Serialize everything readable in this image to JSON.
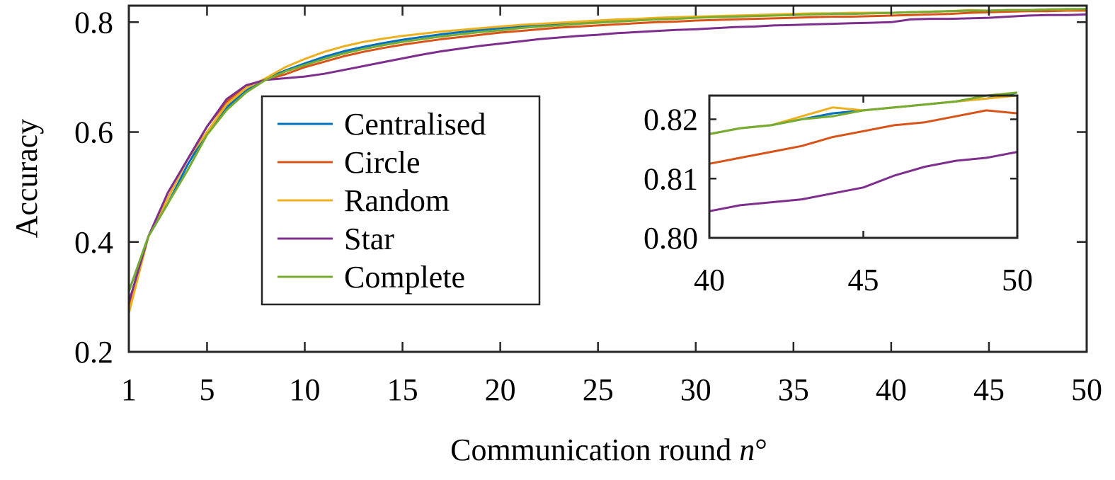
{
  "chart_data": [
    {
      "type": "line",
      "xlabel_main": "Communication round ",
      "xlabel_italic": "n",
      "xlabel_suffix": "°",
      "ylabel": "Accuracy",
      "xlim": [
        1,
        50
      ],
      "ylim": [
        0.2,
        0.83
      ],
      "xticks": [
        1,
        5,
        10,
        15,
        20,
        25,
        30,
        35,
        40,
        45,
        50
      ],
      "yticks": [
        0.2,
        0.4,
        0.6,
        0.8
      ],
      "ytick_labels": [
        "0.2",
        "0.4",
        "0.6",
        "0.8"
      ],
      "grid": false,
      "legend_position": "center-left",
      "x": [
        1,
        2,
        3,
        4,
        5,
        6,
        7,
        8,
        9,
        10,
        11,
        12,
        13,
        14,
        15,
        16,
        17,
        18,
        19,
        20,
        21,
        22,
        23,
        24,
        25,
        26,
        27,
        28,
        29,
        30,
        31,
        32,
        33,
        34,
        35,
        36,
        37,
        38,
        39,
        40,
        41,
        42,
        43,
        44,
        45,
        46,
        47,
        48,
        49,
        50
      ],
      "series": [
        {
          "name": "Centralised",
          "color": "#0072BD",
          "values": [
            0.31,
            0.41,
            0.47,
            0.54,
            0.6,
            0.645,
            0.675,
            0.697,
            0.712,
            0.725,
            0.737,
            0.747,
            0.755,
            0.762,
            0.768,
            0.773,
            0.778,
            0.782,
            0.786,
            0.789,
            0.792,
            0.795,
            0.797,
            0.799,
            0.801,
            0.803,
            0.805,
            0.806,
            0.808,
            0.809,
            0.81,
            0.811,
            0.812,
            0.813,
            0.814,
            0.815,
            0.816,
            0.816,
            0.817,
            0.817,
            0.818,
            0.819,
            0.82,
            0.821,
            0.821,
            0.822,
            0.822,
            0.823,
            0.823,
            0.824
          ]
        },
        {
          "name": "Circle",
          "color": "#D95319",
          "values": [
            0.28,
            0.41,
            0.48,
            0.55,
            0.61,
            0.655,
            0.685,
            0.695,
            0.705,
            0.718,
            0.728,
            0.738,
            0.746,
            0.753,
            0.759,
            0.764,
            0.769,
            0.773,
            0.777,
            0.781,
            0.784,
            0.787,
            0.79,
            0.792,
            0.794,
            0.796,
            0.798,
            0.8,
            0.801,
            0.803,
            0.804,
            0.805,
            0.806,
            0.807,
            0.808,
            0.809,
            0.81,
            0.81,
            0.811,
            0.812,
            0.813,
            0.814,
            0.815,
            0.817,
            0.818,
            0.819,
            0.82,
            0.82,
            0.821,
            0.821
          ]
        },
        {
          "name": "Random",
          "color": "#EDB120",
          "values": [
            0.27,
            0.41,
            0.48,
            0.55,
            0.6,
            0.65,
            0.68,
            0.698,
            0.718,
            0.733,
            0.746,
            0.756,
            0.764,
            0.77,
            0.775,
            0.779,
            0.783,
            0.786,
            0.789,
            0.792,
            0.795,
            0.797,
            0.799,
            0.801,
            0.803,
            0.805,
            0.806,
            0.808,
            0.809,
            0.81,
            0.811,
            0.812,
            0.813,
            0.814,
            0.815,
            0.816,
            0.816,
            0.817,
            0.817,
            0.817,
            0.818,
            0.819,
            0.82,
            0.822,
            0.821,
            0.822,
            0.822,
            0.823,
            0.823,
            0.824
          ]
        },
        {
          "name": "Star",
          "color": "#7E2F8E",
          "values": [
            0.29,
            0.41,
            0.49,
            0.55,
            0.61,
            0.66,
            0.685,
            0.695,
            0.698,
            0.701,
            0.706,
            0.713,
            0.72,
            0.727,
            0.734,
            0.741,
            0.747,
            0.752,
            0.757,
            0.761,
            0.765,
            0.769,
            0.772,
            0.775,
            0.777,
            0.78,
            0.782,
            0.784,
            0.786,
            0.787,
            0.789,
            0.791,
            0.792,
            0.794,
            0.795,
            0.796,
            0.797,
            0.798,
            0.799,
            0.8,
            0.805,
            0.806,
            0.806,
            0.807,
            0.808,
            0.81,
            0.812,
            0.813,
            0.813,
            0.814
          ]
        },
        {
          "name": "Complete",
          "color": "#77AC30",
          "values": [
            0.31,
            0.41,
            0.47,
            0.53,
            0.595,
            0.64,
            0.672,
            0.695,
            0.71,
            0.722,
            0.733,
            0.743,
            0.751,
            0.758,
            0.764,
            0.769,
            0.774,
            0.778,
            0.782,
            0.785,
            0.789,
            0.792,
            0.794,
            0.797,
            0.799,
            0.801,
            0.803,
            0.805,
            0.806,
            0.808,
            0.809,
            0.81,
            0.811,
            0.812,
            0.813,
            0.814,
            0.815,
            0.815,
            0.816,
            0.817,
            0.818,
            0.819,
            0.82,
            0.821,
            0.821,
            0.822,
            0.822,
            0.823,
            0.824,
            0.824
          ]
        }
      ]
    },
    {
      "type": "line",
      "role": "inset",
      "xlim": [
        40,
        50
      ],
      "ylim": [
        0.8,
        0.824
      ],
      "xticks": [
        40,
        45,
        50
      ],
      "yticks": [
        0.8,
        0.81,
        0.82
      ],
      "ytick_labels": [
        "0.80",
        "0.81",
        "0.82"
      ],
      "grid": false,
      "x": [
        40,
        41,
        42,
        43,
        44,
        45,
        46,
        47,
        48,
        49,
        50
      ],
      "series": [
        {
          "color": "#0072BD",
          "values": [
            0.8175,
            0.8185,
            0.819,
            0.82,
            0.821,
            0.8215,
            0.822,
            0.8225,
            0.823,
            0.8235,
            0.8245
          ]
        },
        {
          "color": "#D95319",
          "values": [
            0.8125,
            0.8135,
            0.8145,
            0.8155,
            0.817,
            0.818,
            0.819,
            0.8195,
            0.8205,
            0.8215,
            0.821
          ]
        },
        {
          "color": "#EDB120",
          "values": [
            0.8175,
            0.8185,
            0.819,
            0.8205,
            0.822,
            0.8215,
            0.822,
            0.8225,
            0.823,
            0.8235,
            0.824
          ]
        },
        {
          "color": "#7E2F8E",
          "values": [
            0.8045,
            0.8055,
            0.806,
            0.8065,
            0.8075,
            0.8085,
            0.8105,
            0.812,
            0.813,
            0.8135,
            0.8145
          ]
        },
        {
          "color": "#77AC30",
          "values": [
            0.8175,
            0.8185,
            0.819,
            0.82,
            0.8205,
            0.8215,
            0.822,
            0.8225,
            0.823,
            0.824,
            0.8245
          ]
        }
      ]
    }
  ]
}
